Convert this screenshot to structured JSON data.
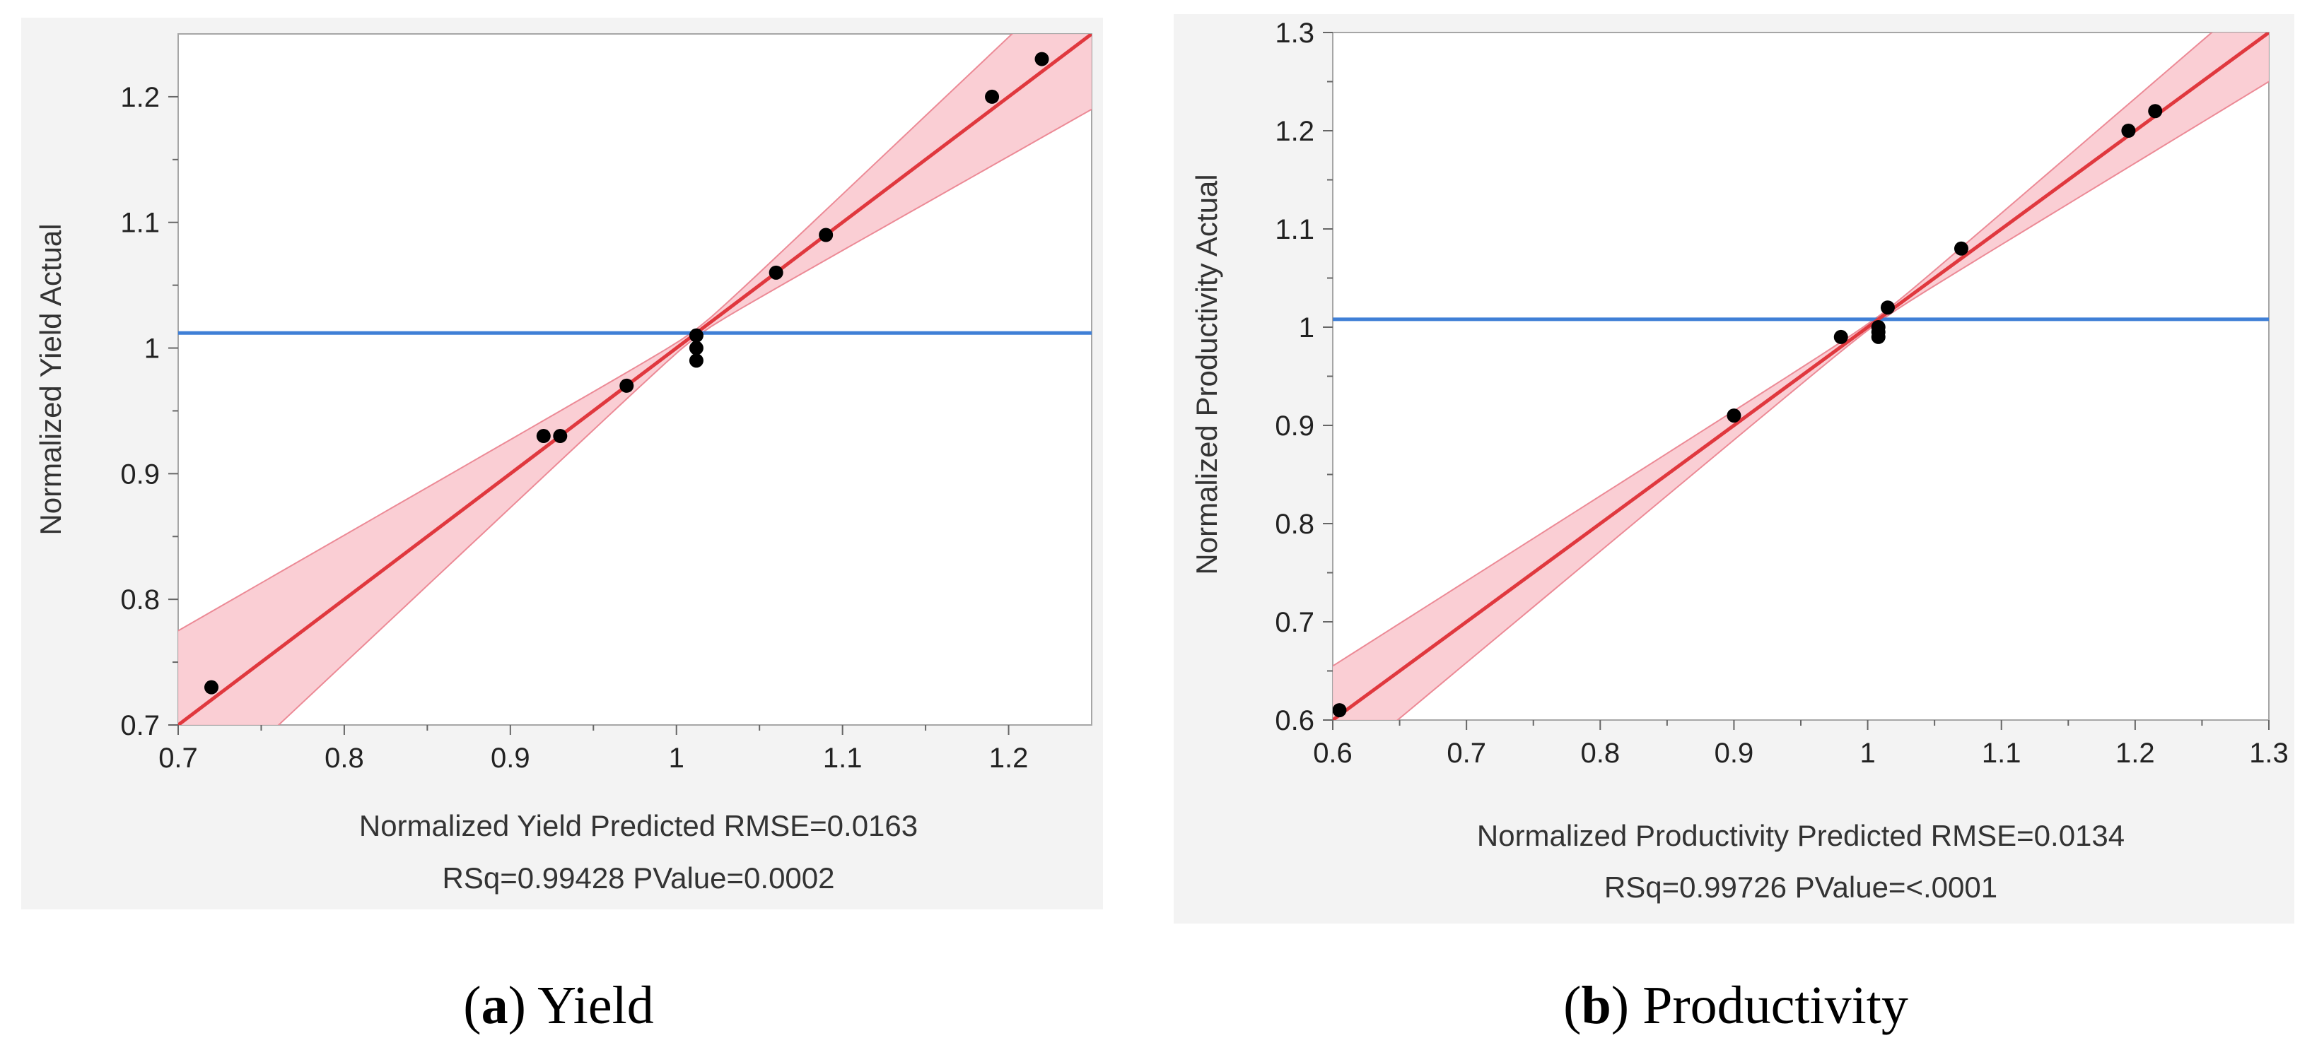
{
  "colors": {
    "fit_line": "#e0383e",
    "confidence_band": "#f9c9cf",
    "confidence_edge": "#ec8a96",
    "mean_line": "#3f7fd6",
    "points": "#000000"
  },
  "chart_data": [
    {
      "type": "scatter",
      "panel_letter": "a",
      "caption_title": "Yield",
      "ylabel": "Normalized Yield Actual",
      "xlabel": "Normalized Yield Predicted RMSE=0.0163",
      "stats_line": "RSq=0.99428 PValue=0.0002",
      "xlim": [
        0.7,
        1.25
      ],
      "ylim": [
        0.7,
        1.25
      ],
      "x_ticks": [
        0.7,
        0.8,
        0.9,
        1,
        1.1,
        1.2
      ],
      "x_tick_labels": [
        "0.7",
        "0.8",
        "0.9",
        "1",
        "1.1",
        "1.2"
      ],
      "y_ticks": [
        0.7,
        0.8,
        0.9,
        1,
        1.1,
        1.2
      ],
      "y_tick_labels": [
        "0.7",
        "0.8",
        "0.9",
        "1",
        "1.1",
        "1.2"
      ],
      "mean_line_y": 1.012,
      "fit_line": {
        "slope": 1,
        "intercept": 0
      },
      "confidence_band_halfwidth": {
        "at_x": [
          0.7,
          1.012,
          1.25
        ],
        "half": [
          0.075,
          0.003,
          0.06
        ]
      },
      "points": [
        {
          "x": 0.72,
          "y": 0.73
        },
        {
          "x": 0.92,
          "y": 0.93
        },
        {
          "x": 0.93,
          "y": 0.93
        },
        {
          "x": 0.97,
          "y": 0.97
        },
        {
          "x": 1.012,
          "y": 0.99
        },
        {
          "x": 1.012,
          "y": 1.0
        },
        {
          "x": 1.012,
          "y": 1.01
        },
        {
          "x": 1.06,
          "y": 1.06
        },
        {
          "x": 1.09,
          "y": 1.09
        },
        {
          "x": 1.19,
          "y": 1.2
        },
        {
          "x": 1.22,
          "y": 1.23
        }
      ]
    },
    {
      "type": "scatter",
      "panel_letter": "b",
      "caption_title": "Productivity",
      "ylabel": "Normalized Productivity Actual",
      "xlabel": "Normalized Productivity Predicted RMSE=0.0134",
      "stats_line": "RSq=0.99726 PValue=<.0001",
      "xlim": [
        0.6,
        1.3
      ],
      "ylim": [
        0.6,
        1.3
      ],
      "x_ticks": [
        0.6,
        0.7,
        0.8,
        0.9,
        1,
        1.1,
        1.2,
        1.3
      ],
      "x_tick_labels": [
        "0.6",
        "0.7",
        "0.8",
        "0.9",
        "1",
        "1.1",
        "1.2",
        "1.3"
      ],
      "y_ticks": [
        0.6,
        0.7,
        0.8,
        0.9,
        1,
        1.1,
        1.2,
        1.3
      ],
      "y_tick_labels": [
        "0.6",
        "0.7",
        "0.8",
        "0.9",
        "1",
        "1.1",
        "1.2",
        "1.3"
      ],
      "mean_line_y": 1.008,
      "fit_line": {
        "slope": 1,
        "intercept": 0
      },
      "confidence_band_halfwidth": {
        "at_x": [
          0.6,
          1.008,
          1.3
        ],
        "half": [
          0.055,
          0.003,
          0.05
        ]
      },
      "points": [
        {
          "x": 0.605,
          "y": 0.61
        },
        {
          "x": 0.9,
          "y": 0.91
        },
        {
          "x": 0.98,
          "y": 0.99
        },
        {
          "x": 1.008,
          "y": 0.99
        },
        {
          "x": 1.008,
          "y": 0.995
        },
        {
          "x": 1.008,
          "y": 1.0
        },
        {
          "x": 1.015,
          "y": 1.02
        },
        {
          "x": 1.07,
          "y": 1.08
        },
        {
          "x": 1.195,
          "y": 1.2
        },
        {
          "x": 1.215,
          "y": 1.22
        }
      ]
    }
  ]
}
